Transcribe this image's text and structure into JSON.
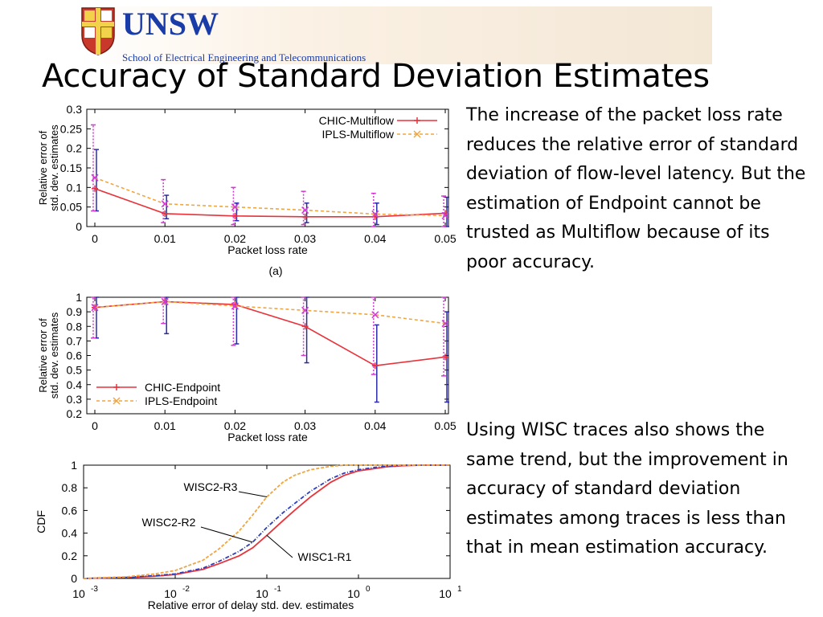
{
  "header": {
    "org": "UNSW",
    "school": "School of Electrical Engineering and Telecommunications"
  },
  "slide": {
    "title": "Accuracy of Standard Deviation Estimates",
    "paragraph1": "The increase of the packet loss rate reduces the relative error of standard deviation of flow-level latency. But the estimation of Endpoint cannot be trusted as Multiflow because of its poor accuracy.",
    "paragraph2": "Using WISC traces also shows the same trend, but the improvement in accuracy of standard deviation estimates among traces is less than that in mean estimation accuracy."
  },
  "colors": {
    "chic": "#e8333a",
    "ipls": "#f0a640",
    "errorbar_chic": "#2a2aa8",
    "errorbar_ipls": "#d238d2",
    "wisc1": "#e8333a",
    "wisc2r2": "#2f3fb8",
    "wisc2r3": "#f0a640"
  },
  "chart_data": [
    {
      "type": "line",
      "caption": "(a)",
      "xlabel": "Packet loss rate",
      "ylabel": "Relative error of std. dev. estimates",
      "x": [
        0,
        0.01,
        0.02,
        0.03,
        0.04,
        0.05
      ],
      "xticks": [
        "0",
        "0.01",
        "0.02",
        "0.03",
        "0.04",
        "0.05"
      ],
      "ylim": [
        0,
        0.3
      ],
      "yticks": [
        "0",
        "0.05",
        "0.1",
        "0.15",
        "0.2",
        "0.25",
        "0.3"
      ],
      "legend_position": "top-right",
      "series": [
        {
          "name": "CHIC-Multiflow",
          "values": [
            0.097,
            0.033,
            0.027,
            0.025,
            0.025,
            0.034
          ],
          "err_low": [
            0.04,
            0.02,
            0.015,
            0.01,
            0.005,
            0.0
          ],
          "err_high": [
            0.197,
            0.08,
            0.06,
            0.06,
            0.06,
            0.075
          ]
        },
        {
          "name": "IPLS-Multiflow",
          "values": [
            0.125,
            0.058,
            0.05,
            0.042,
            0.032,
            0.028
          ],
          "err_low": [
            0.04,
            0.01,
            0.005,
            0.005,
            0.0,
            0.0
          ],
          "err_high": [
            0.26,
            0.12,
            0.1,
            0.09,
            0.085,
            0.078
          ]
        }
      ]
    },
    {
      "type": "line",
      "xlabel": "Packet loss rate",
      "ylabel": "Relative error of std. dev. estimates",
      "x": [
        0,
        0.01,
        0.02,
        0.03,
        0.04,
        0.05
      ],
      "xticks": [
        "0",
        "0.01",
        "0.02",
        "0.03",
        "0.04",
        "0.05"
      ],
      "ylim": [
        0.2,
        1
      ],
      "yticks": [
        "0.2",
        "0.3",
        "0.4",
        "0.5",
        "0.6",
        "0.7",
        "0.8",
        "0.9",
        "1"
      ],
      "legend_position": "bottom-left",
      "series": [
        {
          "name": "CHIC-Endpoint",
          "values": [
            0.93,
            0.97,
            0.95,
            0.8,
            0.53,
            0.59
          ],
          "err_low": [
            0.72,
            0.75,
            0.68,
            0.55,
            0.28,
            0.28
          ],
          "err_high": [
            1.0,
            1.0,
            1.0,
            1.0,
            0.81,
            0.9
          ]
        },
        {
          "name": "IPLS-Endpoint",
          "values": [
            0.93,
            0.97,
            0.94,
            0.91,
            0.88,
            0.82
          ],
          "err_low": [
            0.72,
            0.82,
            0.67,
            0.6,
            0.47,
            0.46
          ],
          "err_high": [
            1.0,
            1.0,
            1.0,
            1.0,
            1.0,
            1.0
          ]
        }
      ]
    },
    {
      "type": "line",
      "scale_x": "log",
      "xlabel": "Relative error of delay std. dev. estimates",
      "ylabel": "CDF",
      "xlim": [
        0.001,
        10
      ],
      "xticks_exp": [
        "-3",
        "-2",
        "-1",
        "0",
        "1"
      ],
      "xtick_base": "10",
      "ylim": [
        0,
        1
      ],
      "yticks": [
        "0",
        "0.2",
        "0.4",
        "0.6",
        "0.8",
        "1"
      ],
      "series": [
        {
          "name": "WISC1-R1",
          "x": [
            0.001,
            0.003,
            0.006,
            0.01,
            0.02,
            0.03,
            0.05,
            0.07,
            0.1,
            0.15,
            0.2,
            0.3,
            0.5,
            0.7,
            1,
            1.5,
            2,
            3,
            5,
            10
          ],
          "y": [
            0,
            0.008,
            0.02,
            0.035,
            0.08,
            0.13,
            0.2,
            0.27,
            0.38,
            0.51,
            0.6,
            0.72,
            0.85,
            0.91,
            0.95,
            0.97,
            0.985,
            0.995,
            1,
            1
          ]
        },
        {
          "name": "WISC2-R2",
          "x": [
            0.001,
            0.003,
            0.006,
            0.01,
            0.02,
            0.03,
            0.05,
            0.07,
            0.1,
            0.15,
            0.2,
            0.3,
            0.5,
            0.7,
            1,
            1.5,
            2,
            3,
            5,
            10
          ],
          "y": [
            0,
            0.01,
            0.025,
            0.04,
            0.09,
            0.15,
            0.24,
            0.32,
            0.45,
            0.58,
            0.66,
            0.77,
            0.88,
            0.93,
            0.96,
            0.98,
            0.99,
            1,
            1,
            1
          ]
        },
        {
          "name": "WISC2-R3",
          "x": [
            0.001,
            0.003,
            0.006,
            0.01,
            0.02,
            0.03,
            0.05,
            0.07,
            0.1,
            0.15,
            0.2,
            0.3,
            0.5,
            0.7,
            1,
            1.5,
            2,
            3,
            5,
            10
          ],
          "y": [
            0,
            0.015,
            0.04,
            0.07,
            0.16,
            0.26,
            0.42,
            0.56,
            0.72,
            0.85,
            0.91,
            0.96,
            0.99,
            1,
            1,
            1,
            1,
            1,
            1,
            1
          ]
        }
      ]
    }
  ]
}
